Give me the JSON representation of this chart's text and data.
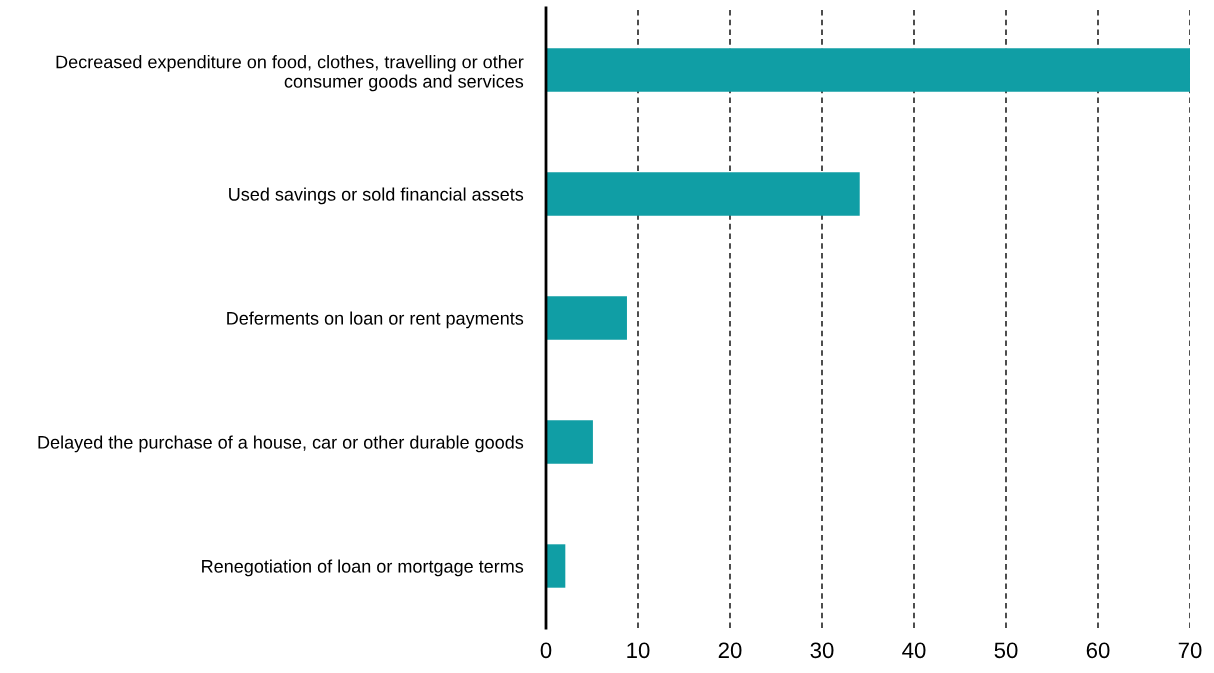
{
  "chart_data": {
    "type": "bar",
    "orientation": "horizontal",
    "categories": [
      "Decreased expenditure on food, clothes, travelling or other\nconsumer goods and services",
      "Used savings or sold financial assets",
      "Deferments on loan or rent payments",
      "Delayed the purchase of a house, car or other durable goods",
      "Renegotiation of loan or mortgage terms"
    ],
    "values": [
      70,
      34.1,
      8.8,
      5.1,
      2.1
    ],
    "color": "#109ea5",
    "xlim": [
      0,
      70
    ],
    "xticks": [
      0,
      10,
      20,
      30,
      40,
      50,
      60,
      70
    ],
    "grid": "x",
    "line_style": "dashed",
    "legend": false
  }
}
